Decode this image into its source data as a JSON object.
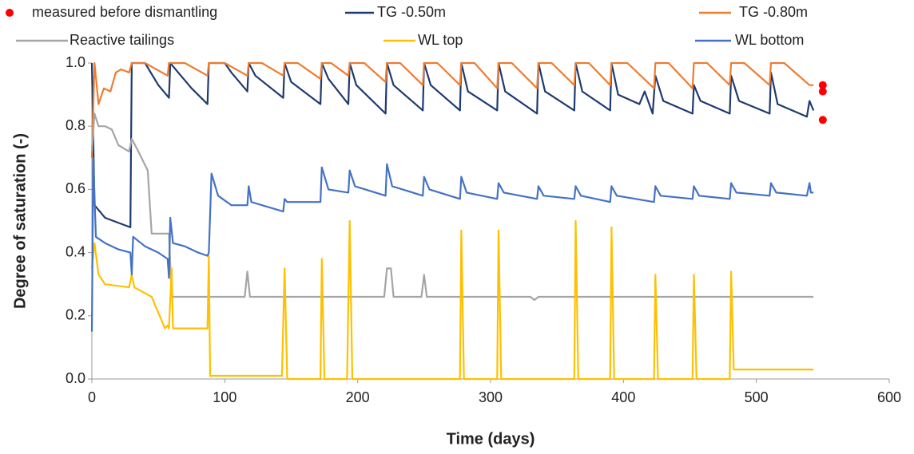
{
  "chart_data": {
    "type": "line",
    "x_label": "Time (days)",
    "y_label": "Degree of saturation (-)",
    "xlim": [
      0,
      600
    ],
    "xticks": [
      0,
      100,
      200,
      300,
      400,
      500,
      600
    ],
    "ylim": [
      0,
      1
    ],
    "yticks": [
      {
        "value": 0,
        "label": "0.0"
      },
      0.2,
      0.4,
      0.6,
      0.8,
      {
        "value": 1,
        "label": "1.0"
      }
    ],
    "grid": false,
    "series": [
      {
        "name": "measured before dismantling",
        "type": "scatter",
        "color": "#ff0000",
        "x": [
          550,
          550,
          550
        ],
        "values": [
          0.93,
          0.91,
          0.82
        ]
      },
      {
        "name": "TG -0.50m",
        "color": "#1f3a6e",
        "x": [
          0,
          2,
          10,
          29,
          30,
          40,
          50,
          58,
          59,
          65,
          75,
          87,
          88,
          100,
          105,
          117,
          118,
          123,
          144,
          145,
          150,
          172,
          173,
          178,
          193,
          194,
          199,
          221,
          222,
          227,
          249,
          250,
          255,
          277,
          278,
          283,
          305,
          306,
          311,
          335,
          336,
          341,
          363,
          364,
          369,
          390,
          391,
          396,
          412,
          416,
          422,
          424,
          430,
          452,
          453,
          458,
          480,
          481,
          487,
          510,
          511,
          516,
          538,
          540,
          543
        ],
        "values": [
          1,
          0.55,
          0.51,
          0.48,
          1,
          1,
          0.93,
          0.89,
          1,
          0.97,
          0.92,
          0.87,
          1,
          1,
          0.97,
          0.91,
          1,
          0.96,
          0.89,
          1,
          0.94,
          0.87,
          1,
          0.95,
          0.87,
          1,
          0.93,
          0.84,
          1,
          0.93,
          0.85,
          1,
          0.93,
          0.85,
          1,
          0.91,
          0.85,
          1,
          0.91,
          0.84,
          1,
          0.91,
          0.85,
          1,
          0.91,
          0.85,
          1,
          0.9,
          0.87,
          0.91,
          0.84,
          0.96,
          0.88,
          0.84,
          0.93,
          0.88,
          0.84,
          0.96,
          0.88,
          0.84,
          0.97,
          0.87,
          0.83,
          0.88,
          0.85
        ]
      },
      {
        "name": "TG -0.80m",
        "color": "#ed7d31",
        "x": [
          0,
          2,
          5,
          9,
          14,
          18,
          22,
          28,
          30,
          40,
          57,
          58,
          70,
          87,
          88,
          100,
          117,
          118,
          128,
          144,
          145,
          155,
          172,
          173,
          180,
          193,
          194,
          205,
          221,
          222,
          232,
          249,
          250,
          260,
          277,
          278,
          288,
          305,
          306,
          316,
          335,
          336,
          346,
          363,
          364,
          374,
          390,
          391,
          403,
          423,
          424,
          434,
          452,
          453,
          463,
          480,
          481,
          491,
          510,
          511,
          521,
          540,
          543
        ],
        "values": [
          0.7,
          1,
          0.87,
          0.92,
          0.91,
          0.97,
          0.98,
          0.97,
          1,
          1,
          0.96,
          1,
          1,
          0.96,
          1,
          1,
          0.96,
          1,
          1,
          0.96,
          1,
          1,
          0.95,
          1,
          1,
          0.96,
          1,
          1,
          0.94,
          1,
          1,
          0.93,
          1,
          1,
          0.93,
          1,
          1,
          0.92,
          1,
          1,
          0.92,
          1,
          1,
          0.93,
          1,
          1,
          0.93,
          1,
          1,
          0.92,
          1,
          1,
          0.92,
          1,
          1,
          0.93,
          1,
          1,
          0.93,
          1,
          1,
          0.93,
          0.93
        ]
      },
      {
        "name": "Reactive tailings",
        "color": "#a5a5a5",
        "x": [
          0,
          2,
          5,
          10,
          15,
          20,
          28,
          30,
          35,
          42,
          45,
          58,
          60,
          115,
          117,
          119,
          220,
          222,
          225,
          227,
          248,
          250,
          252,
          330,
          333,
          336,
          543
        ],
        "values": [
          0.72,
          0.84,
          0.8,
          0.8,
          0.79,
          0.74,
          0.72,
          0.76,
          0.72,
          0.66,
          0.46,
          0.46,
          0.26,
          0.26,
          0.34,
          0.26,
          0.26,
          0.35,
          0.35,
          0.26,
          0.26,
          0.33,
          0.26,
          0.26,
          0.25,
          0.26,
          0.26
        ]
      },
      {
        "name": "WL top",
        "color": "#ffc000",
        "x": [
          0,
          2,
          5,
          10,
          28,
          30,
          32,
          45,
          55,
          57,
          58,
          60,
          61,
          87,
          88,
          89,
          143,
          145,
          147,
          172,
          173,
          175,
          192,
          194,
          196,
          277,
          278,
          280,
          305,
          306,
          308,
          363,
          364,
          366,
          390,
          391,
          393,
          423,
          424,
          426,
          452,
          453,
          455,
          480,
          481,
          483,
          543
        ],
        "values": [
          0.35,
          0.43,
          0.33,
          0.3,
          0.29,
          0.33,
          0.29,
          0.26,
          0.16,
          0.17,
          0.16,
          0.35,
          0.16,
          0.16,
          0.39,
          0.01,
          0.01,
          0.35,
          0,
          0,
          0.38,
          0,
          0,
          0.5,
          0,
          0,
          0.47,
          0,
          0,
          0.47,
          0,
          0,
          0.5,
          0,
          0,
          0.48,
          0,
          0,
          0.33,
          0,
          0,
          0.33,
          0,
          0,
          0.34,
          0.03,
          0.03
        ]
      },
      {
        "name": "WL bottom",
        "color": "#4472c4",
        "x": [
          0,
          1,
          3,
          10,
          20,
          29,
          30,
          31,
          40,
          50,
          57,
          58,
          59,
          61,
          70,
          80,
          87,
          88,
          90,
          95,
          105,
          117,
          118,
          120,
          144,
          145,
          147,
          172,
          173,
          178,
          193,
          194,
          198,
          221,
          222,
          226,
          249,
          250,
          254,
          277,
          278,
          282,
          305,
          306,
          310,
          335,
          336,
          340,
          363,
          364,
          368,
          390,
          391,
          395,
          423,
          424,
          428,
          452,
          453,
          457,
          480,
          481,
          485,
          510,
          511,
          515,
          538,
          540,
          541,
          543
        ],
        "values": [
          0.15,
          0.7,
          0.45,
          0.43,
          0.41,
          0.4,
          0.33,
          0.45,
          0.42,
          0.4,
          0.38,
          0.32,
          0.51,
          0.43,
          0.42,
          0.4,
          0.39,
          0.4,
          0.65,
          0.58,
          0.55,
          0.55,
          0.61,
          0.56,
          0.53,
          0.57,
          0.56,
          0.56,
          0.67,
          0.6,
          0.59,
          0.66,
          0.61,
          0.58,
          0.68,
          0.61,
          0.58,
          0.64,
          0.6,
          0.57,
          0.64,
          0.59,
          0.57,
          0.62,
          0.59,
          0.57,
          0.61,
          0.58,
          0.57,
          0.61,
          0.58,
          0.56,
          0.61,
          0.58,
          0.56,
          0.61,
          0.58,
          0.57,
          0.61,
          0.58,
          0.57,
          0.62,
          0.59,
          0.58,
          0.62,
          0.59,
          0.58,
          0.62,
          0.59,
          0.59
        ]
      }
    ]
  }
}
